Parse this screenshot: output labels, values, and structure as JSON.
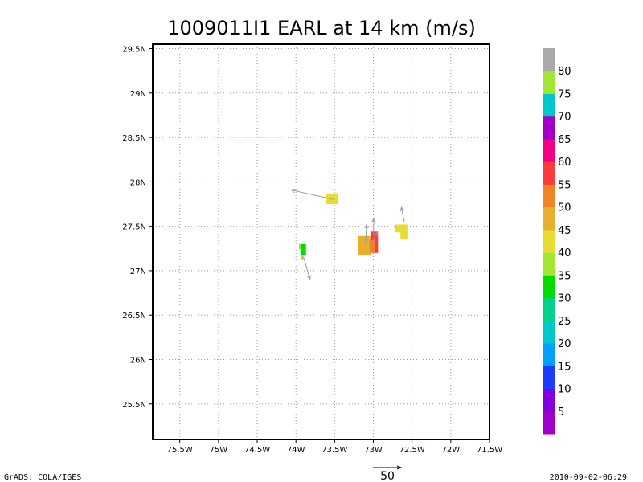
{
  "chart_data": {
    "type": "heatmap",
    "title": "1009011I1 EARL at 14 km (m/s)",
    "xlim": [
      -75.85,
      -71.5
    ],
    "ylim": [
      25.1,
      29.55
    ],
    "x_ticks": [
      {
        "value": -75.5,
        "label": "75.5W"
      },
      {
        "value": -75.0,
        "label": "75W"
      },
      {
        "value": -74.5,
        "label": "74.5W"
      },
      {
        "value": -74.0,
        "label": "74W"
      },
      {
        "value": -73.5,
        "label": "73.5W"
      },
      {
        "value": -73.0,
        "label": "73W"
      },
      {
        "value": -72.5,
        "label": "72.5W"
      },
      {
        "value": -72.0,
        "label": "72W"
      },
      {
        "value": -71.5,
        "label": "71.5W"
      }
    ],
    "y_ticks": [
      {
        "value": 25.5,
        "label": "25.5N"
      },
      {
        "value": 26.0,
        "label": "26N"
      },
      {
        "value": 26.5,
        "label": "26.5N"
      },
      {
        "value": 27.0,
        "label": "27N"
      },
      {
        "value": 27.5,
        "label": "27.5N"
      },
      {
        "value": 28.0,
        "label": "28N"
      },
      {
        "value": 28.5,
        "label": "28.5N"
      },
      {
        "value": 29.0,
        "label": "29N"
      },
      {
        "value": 29.5,
        "label": "29.5N"
      }
    ],
    "grid": true,
    "cells": [
      {
        "lon0": -73.62,
        "lon1": -73.46,
        "lat0": 27.75,
        "lat1": 27.87,
        "value": 40
      },
      {
        "lon0": -73.96,
        "lon1": -73.87,
        "lat0": 27.24,
        "lat1": 27.3,
        "value": 30
      },
      {
        "lon0": -73.93,
        "lon1": -73.87,
        "lat0": 27.17,
        "lat1": 27.24,
        "value": 30
      },
      {
        "lon0": -73.96,
        "lon1": -73.93,
        "lat0": 27.24,
        "lat1": 27.3,
        "value": 35
      },
      {
        "lon0": -73.93,
        "lon1": -73.9,
        "lat0": 27.12,
        "lat1": 27.17,
        "value": 35
      },
      {
        "lon0": -73.2,
        "lon1": -73.03,
        "lat0": 27.17,
        "lat1": 27.39,
        "value": 45
      },
      {
        "lon0": -73.03,
        "lon1": -72.94,
        "lat0": 27.2,
        "lat1": 27.44,
        "value": 55
      },
      {
        "lon0": -73.05,
        "lon1": -72.98,
        "lat0": 27.2,
        "lat1": 27.34,
        "value": 50
      },
      {
        "lon0": -72.72,
        "lon1": -72.6,
        "lat0": 27.43,
        "lat1": 27.52,
        "value": 40
      },
      {
        "lon0": -72.65,
        "lon1": -72.56,
        "lat0": 27.35,
        "lat1": 27.52,
        "value": 40
      }
    ],
    "vectors": [
      {
        "lon": -73.5,
        "lat": 27.8,
        "u": -9.0,
        "v": 2.0
      },
      {
        "lon": -73.9,
        "lat": 27.15,
        "u": 1.3,
        "v": -4.5
      },
      {
        "lon": -73.1,
        "lat": 27.3,
        "u": 0.2,
        "v": 4.0
      },
      {
        "lon": -73.0,
        "lat": 27.4,
        "u": 0.1,
        "v": 3.5
      },
      {
        "lon": -73.05,
        "lat": 27.25,
        "u": 1.6,
        "v": 3.4
      },
      {
        "lon": -72.6,
        "lat": 27.55,
        "u": -0.6,
        "v": 3.0
      }
    ],
    "colorbar": {
      "colors": [
        "#a000c8",
        "#8200dc",
        "#1e3cff",
        "#00a0ff",
        "#00c8c8",
        "#00d28c",
        "#00dc00",
        "#a0e632",
        "#e6dc32",
        "#e6af2d",
        "#f08228",
        "#fa3c3c",
        "#f00082",
        "#a000c8",
        "#00c8c8",
        "#a0e632",
        "#aaaaaa"
      ],
      "labels": [
        "5",
        "10",
        "15",
        "20",
        "25",
        "30",
        "35",
        "40",
        "45",
        "50",
        "55",
        "60",
        "65",
        "70",
        "75",
        "80"
      ]
    },
    "scale_vector_label": "50"
  },
  "footer": {
    "left": "GrADS: COLA/IGES",
    "right": "2010-09-02-06:29"
  }
}
